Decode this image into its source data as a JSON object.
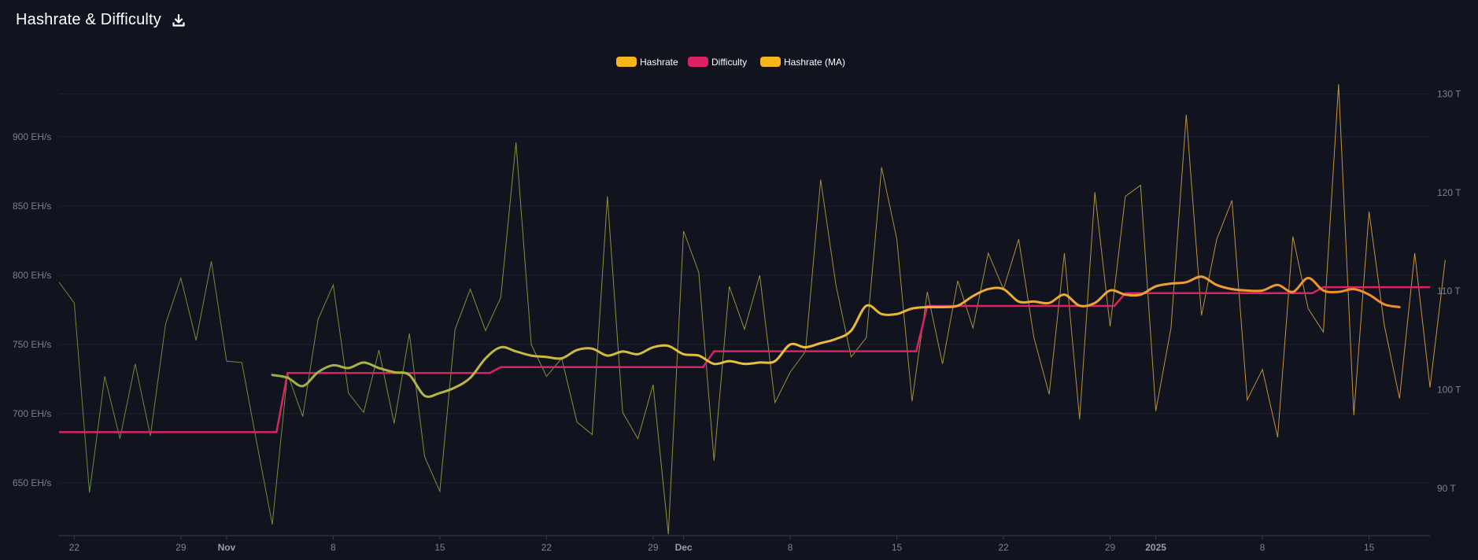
{
  "header": {
    "title": "Hashrate & Difficulty",
    "download_icon": "download-icon"
  },
  "chart_data": {
    "type": "line",
    "title": "Hashrate & Difficulty",
    "legend": [
      {
        "name": "Hashrate",
        "color": "#f7b51c"
      },
      {
        "name": "Difficulty",
        "color": "#db2363"
      },
      {
        "name": "Hashrate (MA)",
        "color": "#f7b51c"
      }
    ],
    "legend_position": "top-center",
    "grid": true,
    "y_left": {
      "label": "",
      "unit": "EH/s",
      "ticks": [
        650,
        700,
        750,
        800,
        850,
        900
      ],
      "tick_labels": [
        "650 EH/s",
        "700 EH/s",
        "750 EH/s",
        "800 EH/s",
        "850 EH/s",
        "900 EH/s"
      ],
      "range": [
        612,
        938
      ]
    },
    "y_right": {
      "label": "",
      "unit": "T",
      "ticks": [
        90,
        100,
        110,
        120,
        130
      ],
      "tick_labels": [
        "90 T",
        "100 T",
        "110 T",
        "120 T",
        "130 T"
      ],
      "range": [
        85.2,
        131.0
      ]
    },
    "x_range": [
      "2024-10-21",
      "2025-01-19"
    ],
    "x_ticks": [
      {
        "date": "2024-10-22",
        "label": "22",
        "bold": false
      },
      {
        "date": "2024-10-29",
        "label": "29",
        "bold": false
      },
      {
        "date": "2024-11-01",
        "label": "Nov",
        "bold": true
      },
      {
        "date": "2024-11-08",
        "label": "8",
        "bold": false
      },
      {
        "date": "2024-11-15",
        "label": "15",
        "bold": false
      },
      {
        "date": "2024-11-22",
        "label": "22",
        "bold": false
      },
      {
        "date": "2024-11-29",
        "label": "29",
        "bold": false
      },
      {
        "date": "2024-12-01",
        "label": "Dec",
        "bold": true
      },
      {
        "date": "2024-12-08",
        "label": "8",
        "bold": false
      },
      {
        "date": "2024-12-15",
        "label": "15",
        "bold": false
      },
      {
        "date": "2024-12-22",
        "label": "22",
        "bold": false
      },
      {
        "date": "2024-12-29",
        "label": "29",
        "bold": false
      },
      {
        "date": "2025-01-01",
        "label": "2025",
        "bold": true
      },
      {
        "date": "2025-01-08",
        "label": "8",
        "bold": false
      },
      {
        "date": "2025-01-15",
        "label": "15",
        "bold": false
      }
    ],
    "series": [
      {
        "name": "Hashrate",
        "axis": "left",
        "start_date": "2024-10-21",
        "values": [
          795,
          780,
          643,
          727,
          682,
          736,
          684,
          765,
          798,
          753,
          810,
          738,
          737,
          678,
          620,
          729,
          698,
          768,
          793,
          715,
          701,
          746,
          693,
          758,
          669,
          644,
          761,
          790,
          760,
          784,
          896,
          750,
          727,
          740,
          694,
          685,
          857,
          701,
          682,
          721,
          613,
          832,
          802,
          666,
          792,
          761,
          800,
          708,
          730,
          745,
          869,
          793,
          741,
          755,
          878,
          826,
          709,
          788,
          736,
          796,
          762,
          816,
          790,
          826,
          755,
          714,
          816,
          696,
          860,
          763,
          857,
          865,
          702,
          762,
          916,
          771,
          826,
          854,
          710,
          732,
          683,
          828,
          776,
          759,
          938,
          699,
          846,
          764,
          711,
          816,
          719,
          811
        ],
        "color_gradient": [
          "#6f9a3a",
          "#e0a040"
        ]
      },
      {
        "name": "Difficulty",
        "axis": "right",
        "color": "#db2363",
        "steps": [
          {
            "from": "2024-10-21",
            "value": 95.7
          },
          {
            "from": "2024-11-05",
            "value": 101.7
          },
          {
            "from": "2024-11-19",
            "value": 102.3
          },
          {
            "from": "2024-12-03",
            "value": 103.9
          },
          {
            "from": "2024-12-17",
            "value": 108.5
          },
          {
            "from": "2024-12-30",
            "value": 109.8
          },
          {
            "from": "2025-01-12",
            "value": 110.4
          }
        ]
      },
      {
        "name": "Hashrate (MA)",
        "axis": "left",
        "start_date": "2024-11-04",
        "values": [
          728,
          726,
          720,
          730,
          735,
          733,
          737,
          733,
          730,
          728,
          713,
          715,
          719,
          726,
          740,
          748,
          745,
          742,
          741,
          740,
          746,
          747,
          742,
          745,
          743,
          748,
          749,
          743,
          742,
          736,
          738,
          736,
          737,
          738,
          750,
          748,
          751,
          754,
          760,
          778,
          772,
          772,
          776,
          777,
          777,
          778,
          785,
          790,
          790,
          781,
          781,
          780,
          786,
          778,
          780,
          789,
          786,
          786,
          792,
          794,
          795,
          799,
          793,
          790,
          789,
          789,
          793,
          788,
          798,
          789,
          788,
          790,
          786,
          779,
          777
        ],
        "color_gradient": [
          "#7da64a",
          "#e8c23a",
          "#f08a2a"
        ]
      }
    ]
  }
}
